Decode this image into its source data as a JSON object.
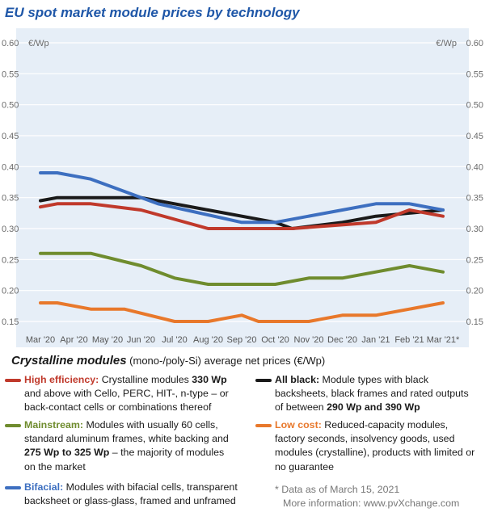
{
  "title": "EU spot market module prices  by technology",
  "chart_data": {
    "type": "line",
    "y_unit_left": "€/Wp",
    "y_unit_right": "€/Wp",
    "ylim": [
      0.15,
      0.6
    ],
    "yticks": [
      "0.60",
      "0.55",
      "0.50",
      "0.45",
      "0.40",
      "0.35",
      "0.30",
      "0.25",
      "0.20",
      "0.15"
    ],
    "categories": [
      "Mar '20",
      "Apr '20",
      "May '20",
      "Jun '20",
      "Jul '20",
      "Aug '20",
      "Sep '20",
      "Oct '20",
      "Nov '20",
      "Dec '20",
      "Jan '21",
      "Feb '21",
      "Mar '21*"
    ],
    "grid": "horizontal",
    "series": [
      {
        "key": "all_black",
        "color": "#1a1a1a",
        "x": [
          0,
          0.5,
          3,
          5,
          7,
          7.5,
          9,
          10,
          12
        ],
        "values": [
          0.345,
          0.35,
          0.35,
          0.33,
          0.31,
          0.3,
          0.31,
          0.32,
          0.33
        ]
      },
      {
        "key": "high_efficiency",
        "color": "#c0392b",
        "x": [
          0,
          0.5,
          1.5,
          3,
          5,
          7.5,
          10,
          11,
          12
        ],
        "values": [
          0.335,
          0.34,
          0.34,
          0.33,
          0.3,
          0.3,
          0.31,
          0.33,
          0.32
        ]
      },
      {
        "key": "bifacial",
        "color": "#3d6fc0",
        "x": [
          0,
          0.5,
          1.5,
          3.5,
          6,
          7,
          9,
          10,
          11,
          12
        ],
        "values": [
          0.39,
          0.39,
          0.38,
          0.34,
          0.31,
          0.31,
          0.33,
          0.34,
          0.34,
          0.33
        ]
      },
      {
        "key": "mainstream",
        "color": "#6f8c2e",
        "x": [
          0,
          0.5,
          1.5,
          3,
          4,
          5,
          7,
          8,
          9,
          10,
          11,
          12
        ],
        "values": [
          0.26,
          0.26,
          0.26,
          0.24,
          0.22,
          0.21,
          0.21,
          0.22,
          0.22,
          0.23,
          0.24,
          0.23
        ]
      },
      {
        "key": "low_cost",
        "color": "#e8782b",
        "x": [
          0,
          0.5,
          1.5,
          2.5,
          4,
          5,
          6,
          6.5,
          8,
          9,
          10,
          11,
          12
        ],
        "values": [
          0.18,
          0.18,
          0.17,
          0.17,
          0.15,
          0.15,
          0.16,
          0.15,
          0.15,
          0.16,
          0.16,
          0.17,
          0.18
        ]
      }
    ]
  },
  "legend": {
    "title_main": "Crystalline modules",
    "title_sub": " (mono-/poly-Si) average net prices (€/Wp)",
    "high_efficiency": {
      "name": "High efficiency:",
      "t1": " Crystalline modules ",
      "b1": "330 Wp",
      "t2": " and above with Cello, PERC, HIT-, n-type – or back-contact cells or combinations thereof"
    },
    "mainstream": {
      "name": "Mainstream:",
      "t1": " Modules with usually 60 cells, standard aluminum frames, white backing and ",
      "b1": "275 Wp to 325 Wp",
      "t2": " – the majority of modules on the market"
    },
    "bifacial": {
      "name": "Bifacial:",
      "t1": " Modules with bifacial cells, transparent backsheet or glass-glass, framed and unframed"
    },
    "all_black": {
      "name": "All black:",
      "t1": " Module types with black backsheets, black frames and rated outputs of between ",
      "b1": "290 Wp and 390 Wp"
    },
    "low_cost": {
      "name": "Low cost:",
      "t1": " Reduced-capacity modules, factory seconds, insolvency goods, used modules (crystalline), products with limited or no guarantee"
    }
  },
  "footnote": {
    "line1": "* Data as of March 15, 2021",
    "line2": "More information: www.pvXchange.com"
  }
}
